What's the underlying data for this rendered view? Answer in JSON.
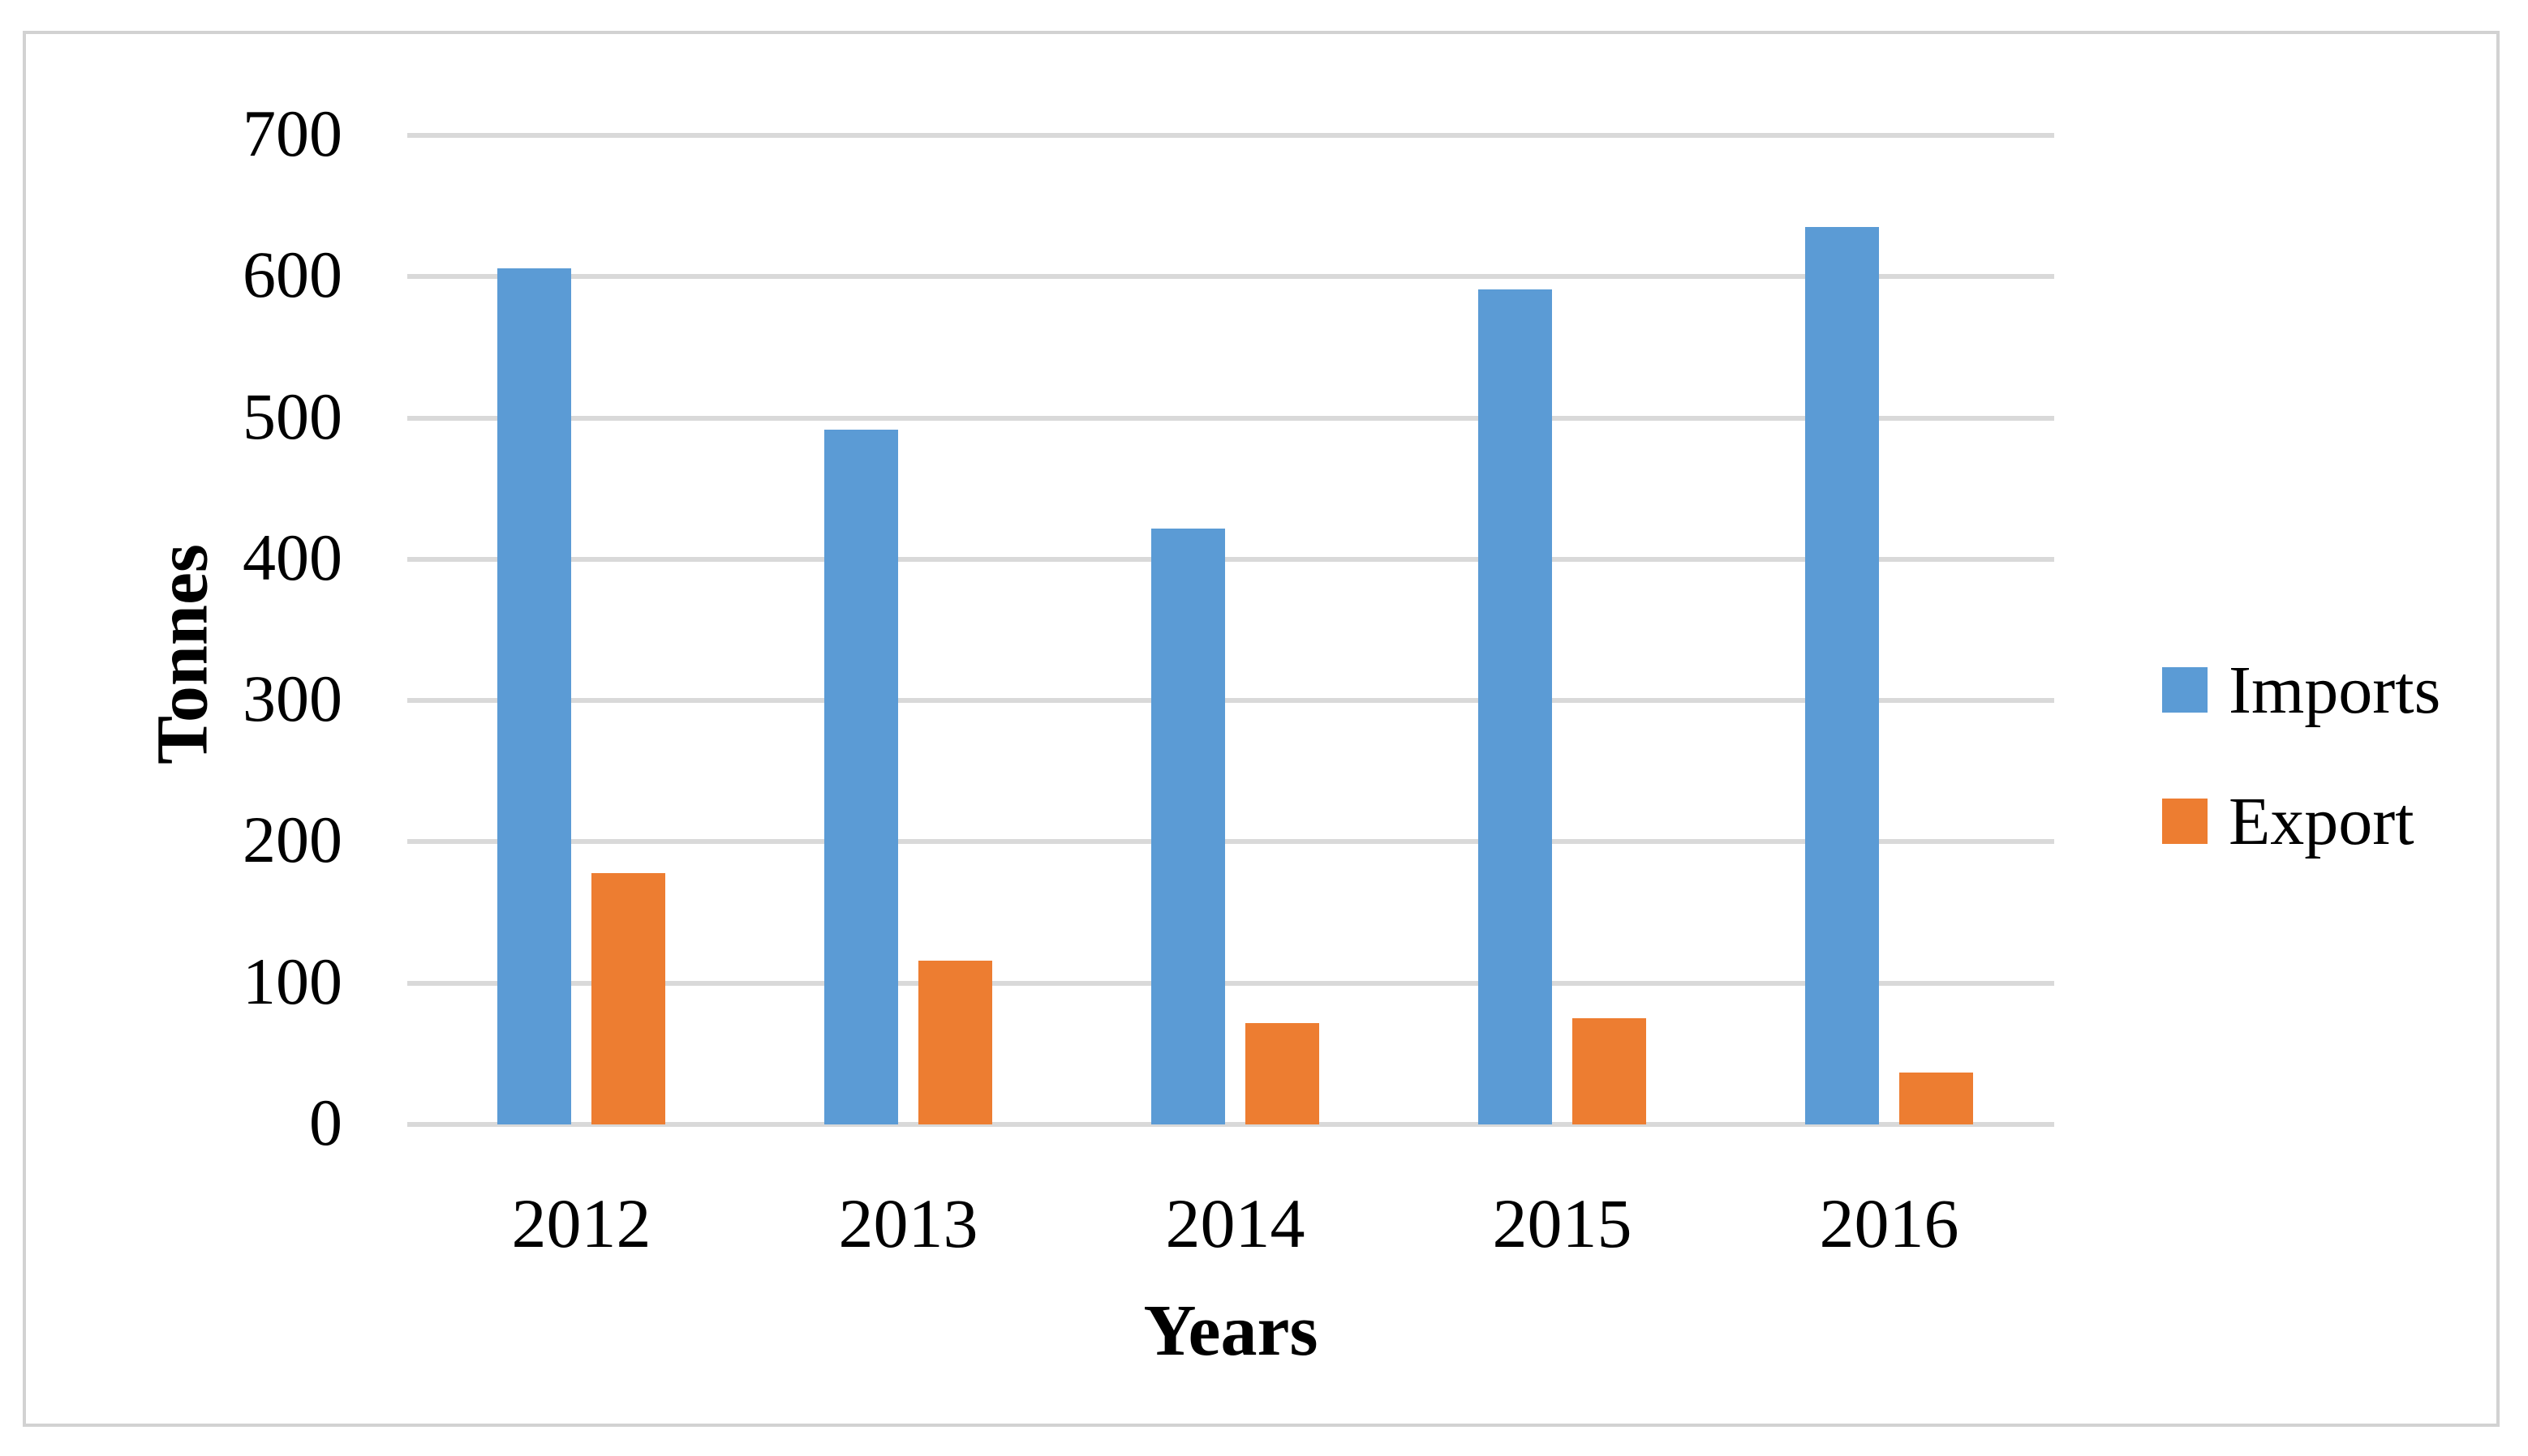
{
  "chart_data": {
    "type": "bar",
    "title": "",
    "categories": [
      "2012",
      "2013",
      "2014",
      "2015",
      "2016"
    ],
    "series": [
      {
        "name": "Imports",
        "color": "#5B9BD5",
        "values": [
          606,
          492,
          422,
          591,
          635
        ]
      },
      {
        "name": "Export",
        "color": "#ED7D31",
        "values": [
          178,
          116,
          72,
          75,
          37
        ]
      }
    ],
    "xlabel": "Years",
    "ylabel": "Tonnes",
    "ylim": [
      0,
      700
    ],
    "yticks": [
      0,
      100,
      200,
      300,
      400,
      500,
      600,
      700
    ],
    "grid": "horizontal",
    "gridline_color": "#D9D9D9",
    "legend_position": "right",
    "background": "#FFFFFF",
    "border_color": "#D2D2D2"
  }
}
